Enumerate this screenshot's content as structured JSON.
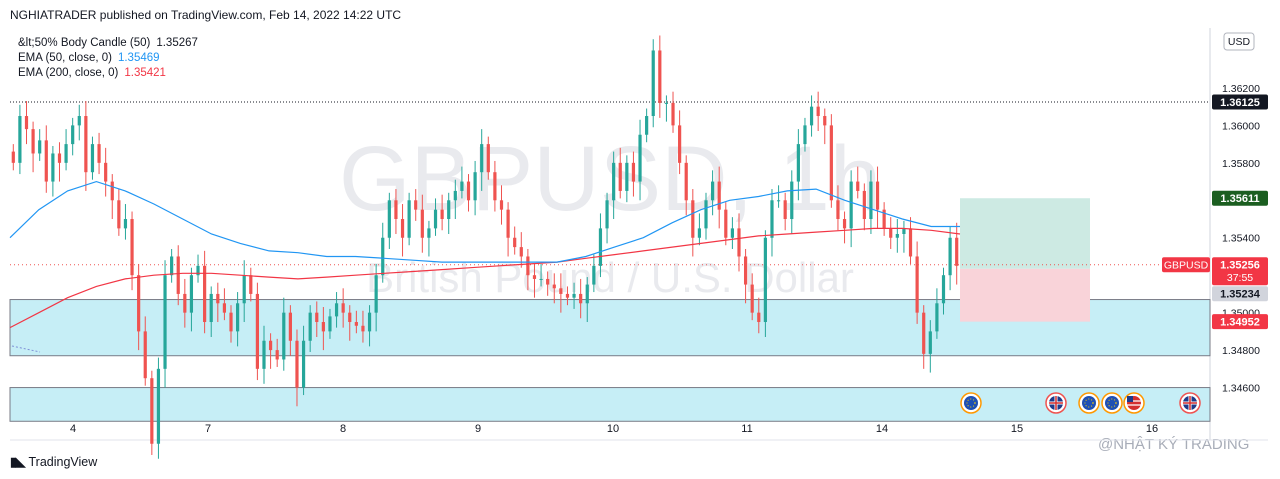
{
  "publisher": "NGHIATRADER published on TradingView.com, Feb 14, 2022 14:22 UTC",
  "legend": [
    {
      "label": "&lt;50% Body Candle (50)",
      "value": "1.35267",
      "color": "#131722"
    },
    {
      "label": "EMA (50, close, 0)",
      "value": "1.35469",
      "color": "#2196f3"
    },
    {
      "label": "EMA (200, close, 0)",
      "value": "1.35421",
      "color": "#f23645"
    }
  ],
  "watermark": {
    "symbol": "GBPUSD, 1h",
    "description": "British Pound / U.S. Dollar"
  },
  "footer": {
    "brand": "TradingView",
    "credit": "@NHẬT KÝ TRADING"
  },
  "price_axis": {
    "currency": "USD"
  },
  "price_badges": {
    "high_line": "1.36125",
    "target": "1.35611",
    "symbol": "GBPUSD",
    "last": "1.35256",
    "countdown": "37:55",
    "entry": "1.35234",
    "stop": "1.34952"
  },
  "colors": {
    "up": "#26a69a",
    "down": "#ef5350",
    "ema50": "#2196f3",
    "ema200": "#f23645",
    "zone": "#c6eef6",
    "profit": "#cdeae3",
    "loss": "#f9d3d9",
    "badge_dark": "#131722",
    "badge_green": "#1b5e20",
    "badge_red": "#f23645"
  },
  "chart_data": {
    "type": "candlestick",
    "symbol": "GBPUSD",
    "timeframe": "1h",
    "x_ticks": [
      "4",
      "7",
      "8",
      "9",
      "10",
      "11",
      "14",
      "15",
      "16"
    ],
    "y_ticks": [
      "1.36200",
      "1.36000",
      "1.35800",
      "1.35400",
      "1.35000",
      "1.34800",
      "1.34600"
    ],
    "ylim": [
      1.3432,
      1.3652
    ],
    "ohlc_close": [
      1.358,
      1.3605,
      1.3598,
      1.3585,
      1.3592,
      1.357,
      1.3585,
      1.358,
      1.359,
      1.36,
      1.3605,
      1.3575,
      1.359,
      1.358,
      1.357,
      1.356,
      1.3545,
      1.355,
      1.352,
      1.349,
      1.3465,
      1.343,
      1.347,
      1.352,
      1.353,
      1.351,
      1.35,
      1.352,
      1.3525,
      1.3495,
      1.351,
      1.3505,
      1.35,
      1.349,
      1.3505,
      1.352,
      1.351,
      1.347,
      1.3485,
      1.348,
      1.3475,
      1.35,
      1.3485,
      1.346,
      1.3485,
      1.35,
      1.3495,
      1.349,
      1.3498,
      1.3505,
      1.35,
      1.3495,
      1.3493,
      1.349,
      1.35,
      1.352,
      1.354,
      1.356,
      1.355,
      1.354,
      1.356,
      1.3555,
      1.354,
      1.3545,
      1.3555,
      1.355,
      1.356,
      1.3565,
      1.357,
      1.356,
      1.3575,
      1.359,
      1.3575,
      1.356,
      1.3555,
      1.354,
      1.3535,
      1.353,
      1.352,
      1.3518,
      1.3518,
      1.3515,
      1.3513,
      1.351,
      1.3508,
      1.351,
      1.3505,
      1.3515,
      1.3525,
      1.3545,
      1.356,
      1.358,
      1.3565,
      1.358,
      1.357,
      1.3595,
      1.3605,
      1.364,
      1.3612,
      1.3612,
      1.36,
      1.358,
      1.356,
      1.354,
      1.3545,
      1.356,
      1.357,
      1.3555,
      1.354,
      1.3545,
      1.353,
      1.3515,
      1.35,
      1.3495,
      1.354,
      1.356,
      1.356,
      1.355,
      1.357,
      1.359,
      1.36,
      1.361,
      1.3605,
      1.36,
      1.356,
      1.355,
      1.3545,
      1.357,
      1.3565,
      1.355,
      1.357,
      1.3555,
      1.3545,
      1.354,
      1.3542,
      1.3545,
      1.353,
      1.35,
      1.3478,
      1.349,
      1.3505,
      1.352,
      1.354,
      1.3525
    ],
    "ema50": [
      1.354,
      1.3555,
      1.3565,
      1.357,
      1.3565,
      1.3558,
      1.355,
      1.3542,
      1.3537,
      1.3533,
      1.3532,
      1.353,
      1.353,
      1.3529,
      1.3528,
      1.3527,
      1.3527,
      1.3527,
      1.3527,
      1.3527,
      1.353,
      1.3535,
      1.354,
      1.3548,
      1.3555,
      1.356,
      1.3562,
      1.3565,
      1.3566,
      1.356,
      1.3555,
      1.355,
      1.3546,
      1.3546
    ],
    "ema200": [
      1.3492,
      1.35,
      1.3508,
      1.3514,
      1.3518,
      1.352,
      1.3521,
      1.3521,
      1.352,
      1.3519,
      1.3518,
      1.3519,
      1.352,
      1.3521,
      1.3522,
      1.3523,
      1.3524,
      1.3525,
      1.3526,
      1.3527,
      1.3529,
      1.3531,
      1.3533,
      1.3535,
      1.3537,
      1.3539,
      1.3541,
      1.3542,
      1.3543,
      1.3544,
      1.3545,
      1.3545,
      1.3544,
      1.3542
    ],
    "levels": {
      "high": 1.36125,
      "target": 1.35611,
      "last": 1.35256,
      "entry": 1.35234,
      "stop": 1.34952
    },
    "zones": [
      {
        "from": 1.3477,
        "to": 1.3507
      },
      {
        "from": 1.3442,
        "to": 1.346
      }
    ]
  }
}
